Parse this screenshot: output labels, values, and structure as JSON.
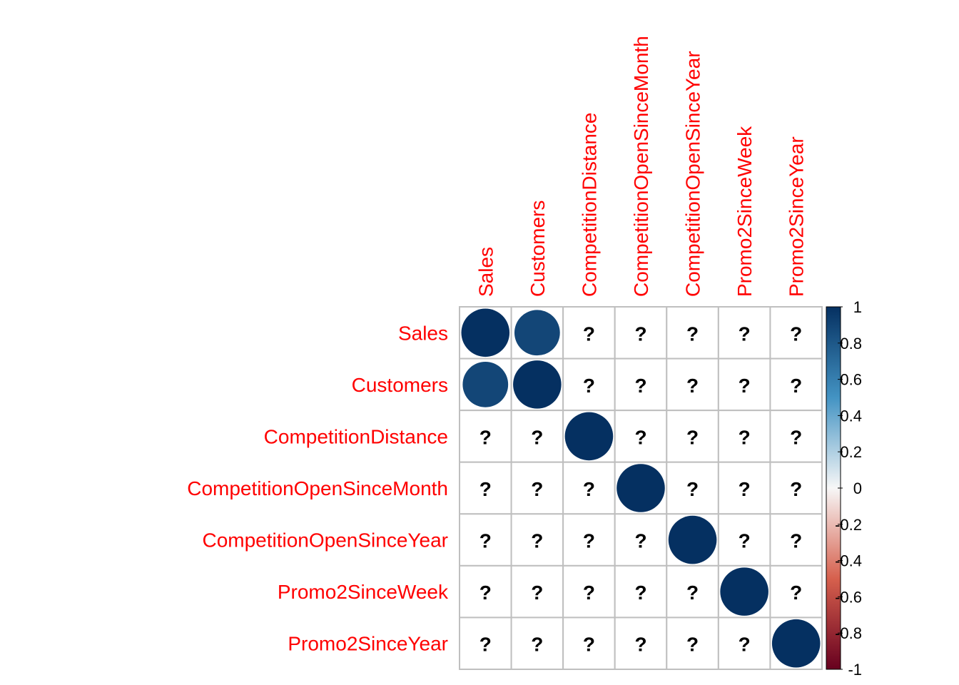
{
  "chart_data": {
    "type": "heatmap",
    "title": "",
    "variables": [
      "Sales",
      "Customers",
      "CompetitionDistance",
      "CompetitionOpenSinceMonth",
      "CompetitionOpenSinceYear",
      "Promo2SinceWeek",
      "Promo2SinceYear"
    ],
    "matrix": [
      [
        1.0,
        0.89,
        null,
        null,
        null,
        null,
        null
      ],
      [
        0.89,
        1.0,
        null,
        null,
        null,
        null,
        null
      ],
      [
        null,
        null,
        1.0,
        null,
        null,
        null,
        null
      ],
      [
        null,
        null,
        null,
        1.0,
        null,
        null,
        null
      ],
      [
        null,
        null,
        null,
        null,
        1.0,
        null,
        null
      ],
      [
        null,
        null,
        null,
        null,
        null,
        1.0,
        null
      ],
      [
        null,
        null,
        null,
        null,
        null,
        null,
        1.0
      ]
    ],
    "missing_symbol": "?",
    "colorbar": {
      "range": [
        -1,
        1
      ],
      "tick_labels": [
        "1",
        "0.8",
        "0.6",
        "0.4",
        "0.2",
        "0",
        "-0.2",
        "-0.4",
        "-0.6",
        "-0.8",
        "-1"
      ],
      "colors": {
        "neg1": "#67001f",
        "neg05": "#d6604d",
        "zero": "#f7f7f7",
        "pos05": "#4393c3",
        "pos1": "#053061"
      }
    },
    "label_color": "#ff0000",
    "grid_color": "#bfbfbf"
  }
}
